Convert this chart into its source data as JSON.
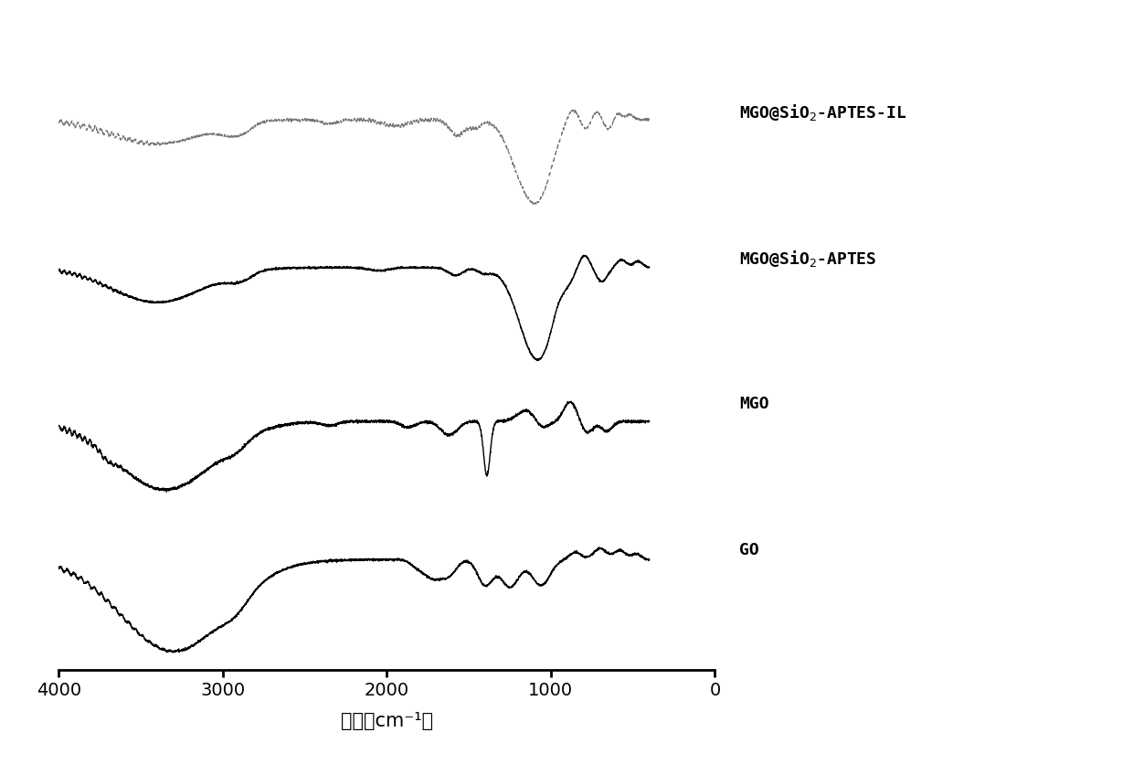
{
  "xlabel": "波数（cm⁻¹）",
  "xlim": [
    4000,
    0
  ],
  "xticks": [
    4000,
    3000,
    2000,
    1000,
    0
  ],
  "background_color": "#ffffff",
  "line_color": "#000000",
  "line_color_dash": "#777777",
  "offsets": [
    0.0,
    1.0,
    2.0,
    3.0
  ],
  "label_texts": [
    "GO",
    "MGO",
    "MGO@SiO$_2$-APTES",
    "MGO@SiO$_2$-APTES-IL"
  ]
}
